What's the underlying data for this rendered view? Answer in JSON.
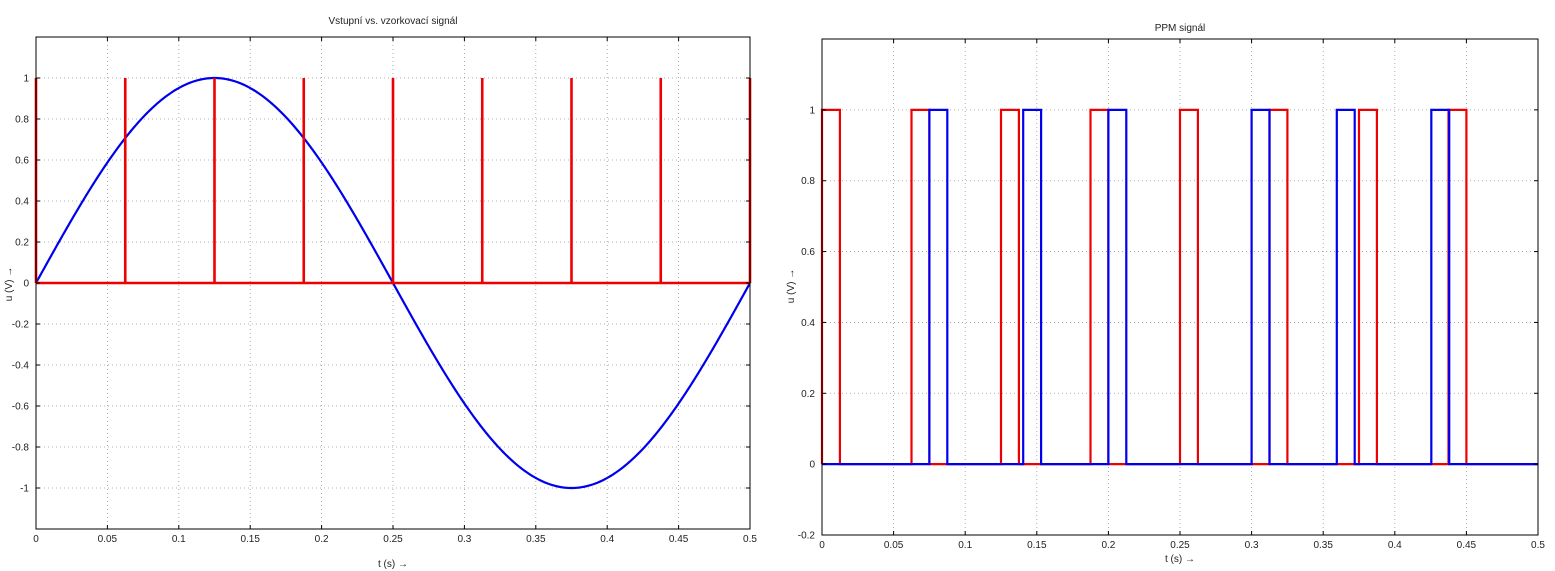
{
  "chart_data": [
    {
      "type": "line",
      "title": "Vstupní vs. vzorkovací signál",
      "xlabel": "t (s) →",
      "ylabel": "u (V) →",
      "xlim": [
        0,
        0.5
      ],
      "ylim": [
        -1.2,
        1.2
      ],
      "xticks": [
        "0",
        "0.05",
        "0.1",
        "0.15",
        "0.2",
        "0.25",
        "0.3",
        "0.35",
        "0.4",
        "0.45",
        "0.5"
      ],
      "xtick_values": [
        0,
        0.05,
        0.1,
        0.15,
        0.2,
        0.25,
        0.3,
        0.35,
        0.4,
        0.45,
        0.5
      ],
      "yticks": [
        "-1",
        "-0.8",
        "-0.6",
        "-0.4",
        "-0.2",
        "0",
        "0.2",
        "0.4",
        "0.6",
        "0.8",
        "1"
      ],
      "ytick_values": [
        -1,
        -0.8,
        -0.6,
        -0.4,
        -0.2,
        0,
        0.2,
        0.4,
        0.6,
        0.8,
        1
      ],
      "grid": true,
      "series": [
        {
          "kind": "sine",
          "color": "#0000ee",
          "amplitude": 1,
          "frequency_hz": 2,
          "x_range": [
            0,
            0.5
          ]
        },
        {
          "kind": "impulses",
          "color": "#ee0000",
          "x": [
            0,
            0.0625,
            0.125,
            0.1875,
            0.25,
            0.3125,
            0.375,
            0.4375,
            0.5
          ],
          "height": 1
        }
      ]
    },
    {
      "type": "line",
      "title": "PPM signál",
      "xlabel": "t (s) →",
      "ylabel": "u (V) →",
      "xlim": [
        0,
        0.5
      ],
      "ylim": [
        -0.2,
        1.2
      ],
      "xticks": [
        "0",
        "0.05",
        "0.1",
        "0.15",
        "0.2",
        "0.25",
        "0.3",
        "0.35",
        "0.4",
        "0.45",
        "0.5"
      ],
      "xtick_values": [
        0,
        0.05,
        0.1,
        0.15,
        0.2,
        0.25,
        0.3,
        0.35,
        0.4,
        0.45,
        0.5
      ],
      "yticks": [
        "-0.2",
        "0",
        "0.2",
        "0.4",
        "0.6",
        "0.8",
        "1"
      ],
      "ytick_values": [
        -0.2,
        0,
        0.2,
        0.4,
        0.6,
        0.8,
        1
      ],
      "grid": true,
      "series": [
        {
          "kind": "pulses",
          "color": "#ee0000",
          "pulses": [
            [
              0,
              0.0125
            ],
            [
              0.0625,
              0.075
            ],
            [
              0.125,
              0.1375
            ],
            [
              0.1875,
              0.2
            ],
            [
              0.25,
              0.2625
            ],
            [
              0.3125,
              0.325
            ],
            [
              0.375,
              0.3875
            ],
            [
              0.4375,
              0.45
            ]
          ]
        },
        {
          "kind": "pulses",
          "color": "#0000ee",
          "pulses": [
            [
              0.075,
              0.0875
            ],
            [
              0.1405,
              0.153
            ],
            [
              0.2,
              0.2125
            ],
            [
              0.3,
              0.3125
            ],
            [
              0.3595,
              0.372
            ],
            [
              0.4255,
              0.438
            ]
          ]
        }
      ]
    }
  ]
}
